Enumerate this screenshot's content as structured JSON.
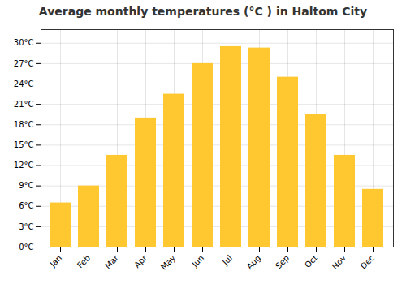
{
  "chart_data": {
    "type": "bar",
    "title": "Average monthly temperatures (°C ) in Haltom City",
    "categories": [
      "Jan",
      "Feb",
      "Mar",
      "Apr",
      "May",
      "Jun",
      "Jul",
      "Aug",
      "Sep",
      "Oct",
      "Nov",
      "Dec"
    ],
    "values": [
      6.5,
      9.0,
      13.5,
      19.0,
      22.5,
      27.0,
      29.5,
      29.3,
      25.0,
      19.5,
      13.5,
      8.5
    ],
    "color": "#FFC830",
    "ylim": [
      0,
      32
    ],
    "yticks": [
      {
        "value": 0,
        "label": "0°C"
      },
      {
        "value": 3,
        "label": "3°C"
      },
      {
        "value": 6,
        "label": "6°C"
      },
      {
        "value": 9,
        "label": "9°C"
      },
      {
        "value": 12,
        "label": "12°C"
      },
      {
        "value": 15,
        "label": "15°C"
      },
      {
        "value": 18,
        "label": "18°C"
      },
      {
        "value": 21,
        "label": "21°C"
      },
      {
        "value": 24,
        "label": "24°C"
      },
      {
        "value": 27,
        "label": "27°C"
      },
      {
        "value": 30,
        "label": "30°C"
      }
    ],
    "grid": true
  }
}
